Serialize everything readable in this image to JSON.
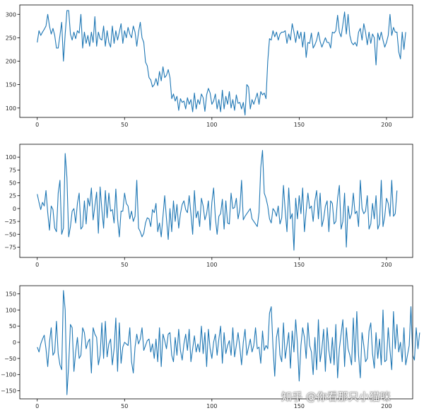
{
  "watermark": "知乎 @你看那只小猫咪",
  "colors": {
    "line": "#1f77b4",
    "axis": "#000000",
    "text": "#262626"
  },
  "chart_data": [
    {
      "type": "line",
      "title": "",
      "xlabel": "",
      "ylabel": "",
      "xlim": [
        -10,
        215
      ],
      "ylim": [
        80,
        320
      ],
      "grid": false,
      "xticks": [
        0,
        50,
        100,
        150,
        200
      ],
      "yticks": [
        100,
        150,
        200,
        250,
        300
      ],
      "series": [
        {
          "name": "series-1",
          "values": [
            240,
            265,
            255,
            262,
            268,
            275,
            300,
            275,
            258,
            270,
            255,
            228,
            228,
            255,
            283,
            200,
            258,
            308,
            308,
            258,
            245,
            262,
            248,
            265,
            260,
            300,
            228,
            262,
            238,
            255,
            232,
            262,
            240,
            295,
            232,
            262,
            248,
            245,
            275,
            232,
            265,
            240,
            230,
            275,
            238,
            265,
            245,
            262,
            280,
            238,
            265,
            250,
            272,
            258,
            250,
            275,
            262,
            232,
            262,
            283,
            250,
            240,
            198,
            190,
            165,
            160,
            145,
            150,
            163,
            148,
            178,
            158,
            188,
            165,
            170,
            182,
            165,
            120,
            130,
            115,
            125,
            95,
            120,
            112,
            115,
            98,
            122,
            108,
            118,
            92,
            132,
            98,
            118,
            108,
            130,
            122,
            93,
            128,
            142,
            132,
            108,
            115,
            130,
            98,
            118,
            92,
            138,
            98,
            125,
            108,
            135,
            100,
            118,
            95,
            128,
            110,
            112,
            98,
            112,
            85,
            150,
            145,
            98,
            118,
            108,
            120,
            132,
            108,
            135,
            128,
            132,
            120,
            200,
            248,
            245,
            265,
            252,
            262,
            245,
            258,
            262,
            262,
            265,
            238,
            258,
            245,
            280,
            262,
            240,
            265,
            248,
            262,
            230,
            262,
            208,
            240,
            238,
            260,
            228,
            235,
            245,
            262,
            242,
            230,
            240,
            250,
            240,
            240,
            228,
            262,
            260,
            265,
            298,
            262,
            252,
            278,
            305,
            258,
            300,
            255,
            240,
            235,
            240,
            232,
            262,
            270,
            245,
            280,
            262,
            235,
            262,
            238,
            258,
            250,
            192,
            260,
            245,
            262,
            245,
            230,
            240,
            255,
            300,
            255,
            272,
            262,
            262,
            220,
            205,
            262,
            225,
            262
          ]
        }
      ]
    },
    {
      "type": "line",
      "title": "",
      "xlabel": "",
      "ylabel": "",
      "xlim": [
        -10,
        215
      ],
      "ylim": [
        -95,
        125
      ],
      "grid": false,
      "xticks": [
        0,
        50,
        100,
        150,
        200
      ],
      "yticks": [
        -75,
        -50,
        -25,
        0,
        25,
        50,
        75,
        100
      ],
      "series": [
        {
          "name": "series-2",
          "values": [
            28,
            12,
            -2,
            12,
            5,
            35,
            -8,
            -42,
            5,
            -2,
            -38,
            -45,
            30,
            55,
            -50,
            -38,
            107,
            60,
            -55,
            -35,
            -5,
            0,
            -28,
            10,
            30,
            -40,
            -35,
            15,
            -30,
            20,
            5,
            40,
            -22,
            5,
            32,
            -48,
            42,
            -2,
            -38,
            35,
            -18,
            30,
            -5,
            -2,
            -28,
            38,
            -20,
            -55,
            -5,
            -5,
            30,
            10,
            5,
            -20,
            -5,
            -25,
            -15,
            55,
            -38,
            -45,
            -55,
            -48,
            -28,
            -18,
            -20,
            -35,
            -2,
            -8,
            10,
            -45,
            -28,
            -55,
            -15,
            25,
            -20,
            -60,
            0,
            -45,
            15,
            -25,
            8,
            -38,
            -10,
            8,
            15,
            -2,
            -8,
            25,
            -10,
            -50,
            35,
            -18,
            -5,
            -35,
            20,
            5,
            -22,
            -10,
            15,
            -42,
            12,
            40,
            -18,
            -50,
            -15,
            -10,
            18,
            -40,
            15,
            -28,
            -30,
            30,
            0,
            2,
            20,
            -20,
            -2,
            55,
            -22,
            -15,
            -10,
            -5,
            0,
            -20,
            -25,
            -30,
            -35,
            -8,
            80,
            113,
            30,
            20,
            5,
            -20,
            -28,
            0,
            -5,
            -15,
            5,
            -30,
            -18,
            45,
            -5,
            -45,
            40,
            -20,
            -10,
            -81,
            20,
            -20,
            25,
            -10,
            40,
            -45,
            -5,
            30,
            0,
            5,
            -25,
            15,
            35,
            -20,
            30,
            -35,
            -20,
            5,
            15,
            -45,
            15,
            10,
            -30,
            -25,
            20,
            45,
            -40,
            -25,
            30,
            -75,
            5,
            -20,
            -10,
            30,
            -10,
            -5,
            -35,
            55,
            0,
            -10,
            -5,
            25,
            -40,
            -30,
            10,
            -20,
            25,
            -40,
            -30,
            55,
            -35,
            -15,
            20,
            10,
            -15,
            55,
            -15,
            -10,
            35
          ]
        }
      ]
    },
    {
      "type": "line",
      "title": "",
      "xlabel": "",
      "ylabel": "",
      "xlim": [
        -10,
        215
      ],
      "ylim": [
        -175,
        175
      ],
      "grid": false,
      "xticks": [
        0,
        50,
        100,
        150,
        200
      ],
      "yticks": [
        -150,
        -100,
        -50,
        0,
        50,
        100,
        150
      ],
      "series": [
        {
          "name": "series-3",
          "values": [
            -15,
            -30,
            -5,
            10,
            22,
            -20,
            -75,
            0,
            45,
            -40,
            -30,
            65,
            -35,
            -70,
            -85,
            160,
            100,
            -162,
            -70,
            55,
            45,
            -90,
            -30,
            15,
            -50,
            -40,
            45,
            30,
            -20,
            0,
            10,
            -95,
            45,
            25,
            15,
            -70,
            -40,
            60,
            -50,
            65,
            -45,
            -5,
            10,
            -70,
            -20,
            75,
            -90,
            60,
            -65,
            -15,
            0,
            -5,
            -10,
            45,
            -60,
            -95,
            -15,
            25,
            -5,
            10,
            45,
            -25,
            -10,
            5,
            10,
            -30,
            -5,
            -50,
            10,
            -60,
            45,
            -75,
            25,
            5,
            -20,
            25,
            30,
            -40,
            -60,
            15,
            -40,
            40,
            -25,
            -55,
            -5,
            25,
            -25,
            40,
            -60,
            -20,
            20,
            -30,
            -5,
            -30,
            50,
            -35,
            30,
            -75,
            40,
            -20,
            -50,
            0,
            25,
            -40,
            10,
            50,
            -65,
            30,
            -35,
            -10,
            5,
            -40,
            45,
            -45,
            -10,
            30,
            -15,
            -70,
            0,
            40,
            -40,
            -15,
            10,
            -30,
            -10,
            45,
            -20,
            -15,
            -65,
            35,
            -25,
            -10,
            -20,
            90,
            110,
            -15,
            -105,
            15,
            45,
            -40,
            -60,
            60,
            -50,
            -10,
            30,
            -80,
            35,
            -30,
            70,
            -5,
            -120,
            -10,
            45,
            15,
            -50,
            60,
            -10,
            -30,
            -100,
            15,
            -85,
            70,
            -60,
            -20,
            40,
            -90,
            45,
            -25,
            -65,
            15,
            -70,
            55,
            -110,
            -20,
            25,
            70,
            -75,
            45,
            -20,
            -40,
            -70,
            75,
            -60,
            95,
            -40,
            -110,
            30,
            -10,
            -60,
            -50,
            35,
            60,
            -35,
            -80,
            30,
            -50,
            10,
            -70,
            100,
            -60,
            -55,
            45,
            -25,
            -85,
            95,
            -20,
            55,
            -30,
            0,
            -60,
            45,
            -70,
            -40,
            -10,
            110,
            -40,
            -55,
            45,
            -20,
            30
          ]
        }
      ]
    }
  ]
}
